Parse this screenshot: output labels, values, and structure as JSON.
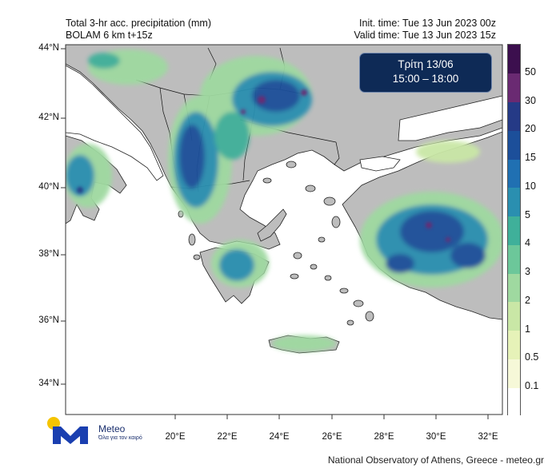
{
  "header": {
    "title_line1": "Total 3-hr acc. precipitation (mm)",
    "title_line2": "BOLAM 6 km t+15z",
    "init_time": "Init. time: Tue 13 Jun 2023 00z",
    "valid_time": "Valid time: Tue 13 Jun 2023 15z"
  },
  "overlay": {
    "day": "Τρίτη 13/06",
    "time_range": "15:00 – 18:00"
  },
  "axes": {
    "latitudes": [
      "44°N",
      "42°N",
      "40°N",
      "38°N",
      "36°N",
      "34°N"
    ],
    "longitudes": [
      "20°E",
      "22°E",
      "24°E",
      "26°E",
      "28°E",
      "30°E",
      "32°E"
    ]
  },
  "colorbar": {
    "levels": [
      "0.1",
      "0.5",
      "1",
      "2",
      "3",
      "4",
      "5",
      "10",
      "15",
      "20",
      "30",
      "50"
    ],
    "colors": [
      "#ffffff",
      "#f6f8d8",
      "#e6f2b8",
      "#c9e7a6",
      "#9fd9a0",
      "#6cc79a",
      "#3fb09a",
      "#2a8fb0",
      "#2070b2",
      "#1c4f9a",
      "#253a86",
      "#6a2a72",
      "#3c0f4e"
    ]
  },
  "branding": {
    "logo_name": "Meteo",
    "logo_tagline": "Όλα για τον καιρό",
    "credit": "National Observatory of Athens, Greece - meteo.gr"
  },
  "colors": {
    "sea": "#ffffff",
    "land": "#bdbdbd",
    "overlay_bg": "#0e2a56",
    "logo_blue": "#1a3fb0",
    "logo_yellow": "#f5c400"
  }
}
